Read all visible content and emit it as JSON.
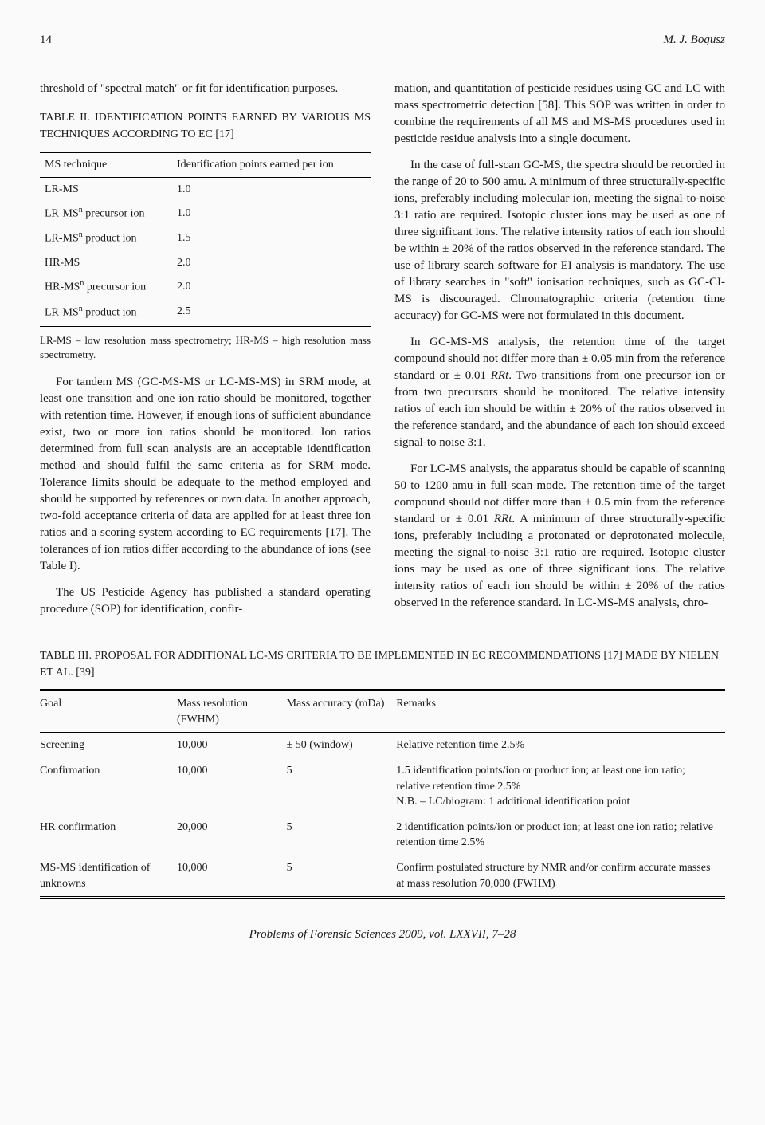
{
  "header": {
    "page": "14",
    "author": "M. J. Bogusz"
  },
  "leftCol": {
    "p1": "threshold of \"spectral match\" or fit for identification purposes.",
    "table2Caption": "TABLE II. IDENTIFICATION POINTS EARNED BY VARIOUS MS TECHNIQUES ACCORDING TO EC [17]",
    "table2": {
      "headCol1": "MS technique",
      "headCol2": "Identification points earned per ion",
      "rows": [
        {
          "a": "LR-MS",
          "b": "1.0"
        },
        {
          "a": "LR-MS",
          "sup": "n",
          "aSuffix": " precursor ion",
          "b": "1.0"
        },
        {
          "a": "LR-MS",
          "sup": "n",
          "aSuffix": " product ion",
          "b": "1.5"
        },
        {
          "a": "HR-MS",
          "b": "2.0"
        },
        {
          "a": "HR-MS",
          "sup": "n",
          "aSuffix": " precursor ion",
          "b": "2.0"
        },
        {
          "a": "LR-MS",
          "sup": "n",
          "aSuffix": " product ion",
          "b": "2.5"
        }
      ],
      "footnote": "LR-MS – low resolution mass spectrometry; HR-MS – high resolution mass spectrometry."
    },
    "p2": "For tandem MS (GC-MS-MS or LC-MS-MS) in SRM mode, at least one transition and one ion ratio should be monitored, together with retention time. However, if enough ions of sufficient abundance exist, two or more ion ratios should be monitored. Ion ratios determined from full scan analysis are an acceptable identification method and should fulfil the same criteria as for SRM mode. Tolerance limits should be adequate to the method employed and should be supported by references or own data. In another approach, two-fold acceptance criteria of data are applied for at least three ion ratios and a scoring system according to EC requirements [17]. The tolerances of ion ratios differ according to the abundance of ions (see Table I).",
    "p3": "The US Pesticide Agency has published a standard operating procedure (SOP) for identification, confir-"
  },
  "rightCol": {
    "p1": "mation, and quantitation of pesticide residues using GC and LC with mass spectrometric detection [58]. This SOP was written in order to combine the requirements of all MS and MS-MS procedures used in pesticide residue analysis into a single document.",
    "p2": "In the case of full-scan GC-MS, the spectra should be recorded in the range of 20 to 500 amu. A minimum of three structurally-specific ions, preferably including molecular ion, meeting the signal-to-noise 3:1 ratio are required. Isotopic cluster ions may be used as one of three significant ions. The relative intensity ratios of each ion should be within ± 20% of the ratios observed in the reference standard. The use of library search software for EI analysis is mandatory. The use of library searches in \"soft\" ionisation techniques, such as GC-CI-MS is discouraged. Chromatographic criteria (retention time accuracy) for GC-MS were not formulated in this document.",
    "p3a": "In GC-MS-MS analysis, the retention time of the target compound should not differ more than ± 0.05 min from the reference standard or ± 0.01 ",
    "p3b": ". Two transitions from one precursor ion or from two precursors should be monitored. The relative intensity ratios of each ion should be within ± 20% of the ratios observed in the reference standard, and the abundance of each ion should exceed signal-to noise 3:1.",
    "p4a": "For LC-MS analysis, the apparatus should be capable of scanning 50 to 1200 amu in full scan mode. The retention time of the target compound should not differ more than ± 0.5 min from the reference standard or ± 0.01 ",
    "p4b": ". A minimum of three structurally-specific ions, preferably including a protonated or deprotonated molecule, meeting the signal-to-noise 3:1 ratio are required. Isotopic cluster ions may be used as one of three significant ions. The relative intensity ratios of each ion should be within ± 20% of the ratios observed in the reference standard. In LC-MS-MS analysis, chro-",
    "rrt": "RRt"
  },
  "table3": {
    "caption": "TABLE III. PROPOSAL FOR ADDITIONAL LC-MS CRITERIA TO BE IMPLEMENTED IN EC RECOMMENDATIONS [17] MADE BY NIELEN ET AL. [39]",
    "headers": {
      "goal": "Goal",
      "res": "Mass resolution (FWHM)",
      "acc": "Mass accuracy (mDa)",
      "remarks": "Remarks"
    },
    "rows": [
      {
        "goal": "Screening",
        "res": "10,000",
        "acc": "± 50 (window)",
        "remarks": "Relative retention time 2.5%"
      },
      {
        "goal": "Confirmation",
        "res": "10,000",
        "acc": "5",
        "remarks": "1.5 identification points/ion or product ion; at least one ion ratio; relative retention time 2.5%\nN.B. – LC/biogram: 1 additional identification point"
      },
      {
        "goal": "HR confirmation",
        "res": "20,000",
        "acc": "5",
        "remarks": "2 identification points/ion or product ion; at least one ion ratio; relative retention time 2.5%"
      },
      {
        "goal": "MS-MS identification of unknowns",
        "res": "10,000",
        "acc": "5",
        "remarks": "Confirm postulated structure by NMR and/or confirm accurate masses at mass resolution 70,000 (FWHM)"
      }
    ]
  },
  "footer": "Problems of Forensic Sciences 2009, vol. LXXVII, 7–28"
}
